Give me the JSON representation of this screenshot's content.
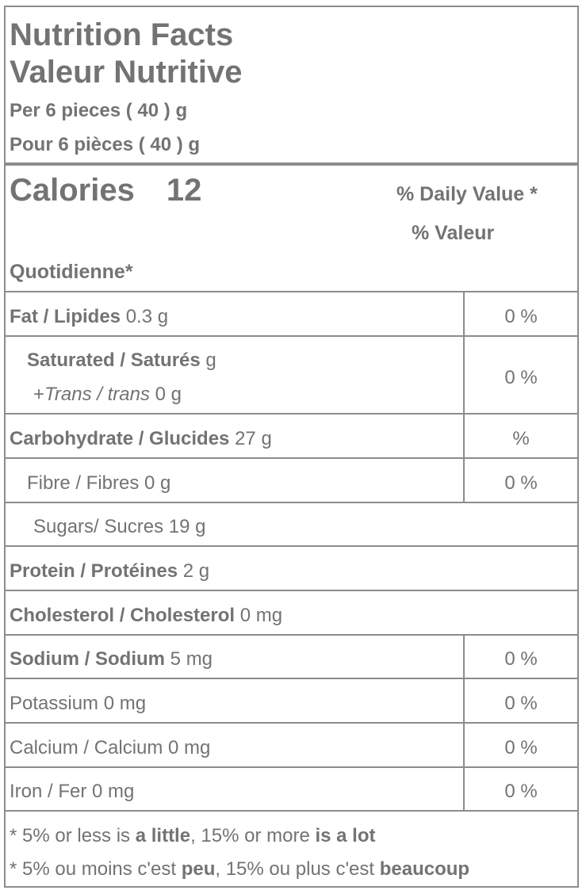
{
  "header": {
    "title_en": "Nutrition Facts",
    "title_fr": "Valeur Nutritive",
    "serving_en": "Per 6 pieces ( 40 ) g",
    "serving_fr": "Pour 6 pièces ( 40 ) g"
  },
  "calories": {
    "label": "Calories",
    "value": "12",
    "dv_en": "% Daily Value *",
    "dv_fr_1": "% Valeur",
    "dv_fr_2": "Quotidienne*"
  },
  "nutrients": {
    "fat": {
      "label": "Fat / Lipides",
      "amount": "0.3 g",
      "dv": "0 %"
    },
    "saturated": {
      "label": "Saturated / Saturés",
      "amount": "g",
      "dv": "0 %"
    },
    "trans": {
      "prefix": "+",
      "label": "Trans / trans",
      "amount": "0 g"
    },
    "carbohydrate": {
      "label": "Carbohydrate / Glucides",
      "amount": "27 g",
      "dv": "%"
    },
    "fibre": {
      "label": "Fibre / Fibres 0 g",
      "dv": "0 %"
    },
    "sugars": {
      "label": "Sugars/ Sucres 19 g"
    },
    "protein": {
      "label": "Protein / Protéines",
      "amount": "2 g"
    },
    "cholesterol": {
      "label": "Cholesterol / Cholesterol",
      "amount": "0 mg"
    },
    "sodium": {
      "label": "Sodium / Sodium",
      "amount": "5 mg",
      "dv": "0 %"
    },
    "potassium": {
      "label": "Potassium 0 mg",
      "dv": "0 %"
    },
    "calcium": {
      "label": "Calcium / Calcium 0 mg",
      "dv": "0 %"
    },
    "iron": {
      "label": "Iron / Fer 0 mg",
      "dv": "0 %"
    }
  },
  "footnote": {
    "en_1": "* 5% or less is ",
    "en_2": "a little",
    "en_3": ", 15% or more ",
    "en_4": "is a lot",
    "fr_1": "* 5% ou moins c'est ",
    "fr_2": "peu",
    "fr_3": ", 15% ou plus c'est ",
    "fr_4": "beaucoup"
  }
}
